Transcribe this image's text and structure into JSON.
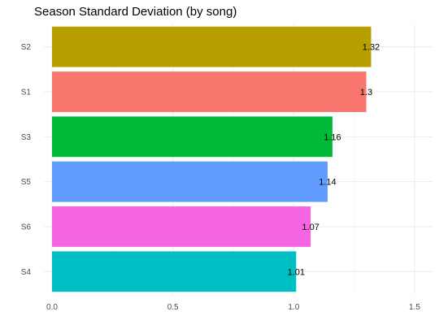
{
  "chart_data": {
    "type": "bar",
    "orientation": "horizontal",
    "title": "Season Standard Deviation (by song)",
    "xlabel": "",
    "ylabel": "",
    "categories": [
      "S2",
      "S1",
      "S3",
      "S5",
      "S6",
      "S4"
    ],
    "values": [
      1.32,
      1.3,
      1.16,
      1.14,
      1.07,
      1.01
    ],
    "value_labels": [
      "1.32",
      "1.3",
      "1.16",
      "1.14",
      "1.07",
      "1.01"
    ],
    "colors": [
      "#B79F00",
      "#F8766D",
      "#00BA38",
      "#619CFF",
      "#F564E3",
      "#00BFC4"
    ],
    "xlim": [
      0,
      1.5
    ],
    "x_ticks": [
      0.0,
      0.5,
      1.0,
      1.5
    ],
    "x_tick_labels": [
      "0.0",
      "0.5",
      "1.0",
      "1.5"
    ],
    "grid": true,
    "legend": "none"
  }
}
